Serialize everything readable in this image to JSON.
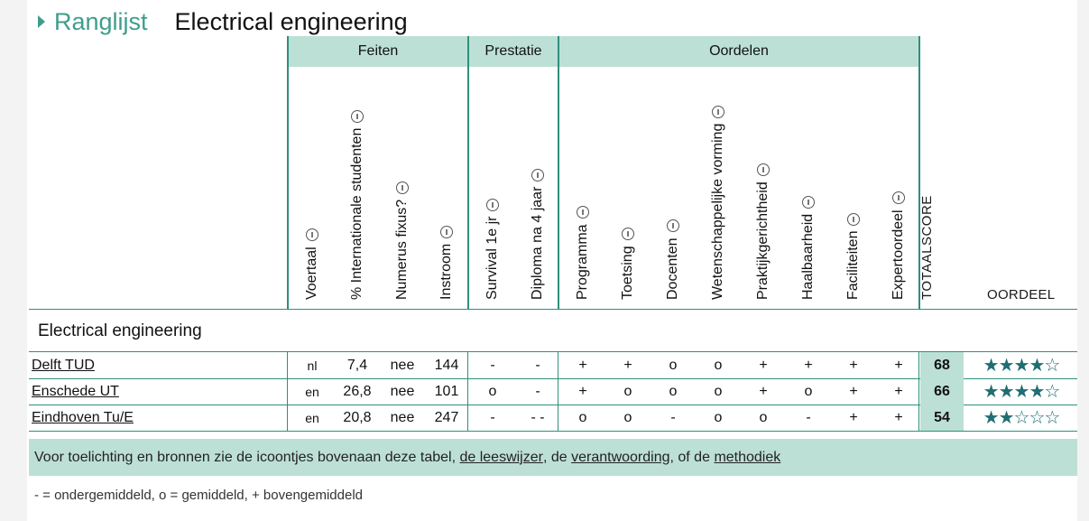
{
  "header": {
    "section": "Ranglijst",
    "title": "Electrical engineering"
  },
  "groups": {
    "feiten": "Feiten",
    "prestatie": "Prestatie",
    "oordelen": "Oordelen"
  },
  "columns": [
    "Voertaal",
    "% Internationale studenten",
    "Numerus fixus?",
    "Instroom",
    "Survival 1e jr",
    "Diploma na 4 jaar",
    "Programma",
    "Toetsing",
    "Docenten",
    "Wetenschappelijke vorming",
    "Praktijkgerichtheid",
    "Haalbaarheid",
    "Faciliteiten",
    "Expertoordeel"
  ],
  "totaalscore_label": "TOTAALSCORE",
  "oordeel_label": "OORDEEL",
  "section_title": "Electrical engineering",
  "rows": [
    {
      "name": "Delft TUD",
      "values": [
        "nl",
        "7,4",
        "nee",
        "144",
        "-",
        "-",
        "+",
        "+",
        "o",
        "o",
        "+",
        "+",
        "+",
        "+"
      ],
      "score": "68",
      "stars": 4
    },
    {
      "name": "Enschede UT",
      "values": [
        "en",
        "26,8",
        "nee",
        "101",
        "o",
        "-",
        "+",
        "o",
        "o",
        "o",
        "+",
        "o",
        "+",
        "+"
      ],
      "score": "66",
      "stars": 4
    },
    {
      "name": "Eindhoven Tu/E",
      "values": [
        "en",
        "20,8",
        "nee",
        "247",
        "-",
        "- -",
        "o",
        "o",
        "-",
        "o",
        "o",
        "-",
        "+",
        "+"
      ],
      "score": "54",
      "stars": 2
    }
  ],
  "footer": {
    "text_before": "Voor toelichting en bronnen zie de icoontjes bovenaan deze tabel,",
    "link1": "de leeswijzer",
    "text_mid": ", de",
    "link2": "verantwoording",
    "text_mid2": ", of de",
    "link3": "methodiek"
  },
  "legend": "- = ondergemiddeld, o = gemiddeld, + bovengemiddeld",
  "colors": {
    "accent": "#3f9d8c",
    "header_bg": "#bde0d6",
    "star": "#1f6e73"
  }
}
